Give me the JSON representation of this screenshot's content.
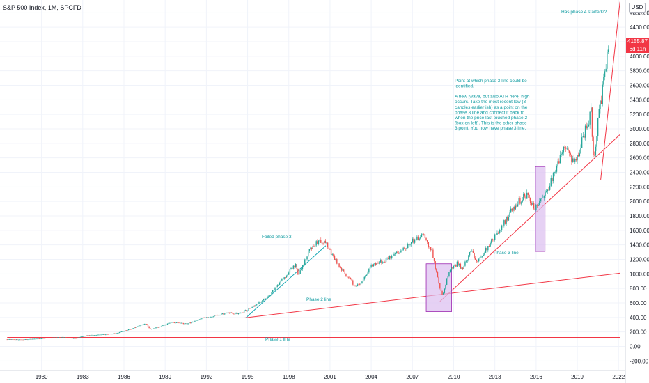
{
  "header": {
    "title": "S&P 500 Index, 1M, SPCFD",
    "currency": "USD"
  },
  "price_tag": {
    "value": "4155.87",
    "countdown": "6d 11h"
  },
  "chart_data": {
    "type": "candlestick",
    "y_ticks": [
      "-200.00",
      "0.00",
      "200.00",
      "400.00",
      "600.00",
      "800.00",
      "1000.00",
      "1200.00",
      "1400.00",
      "1600.00",
      "1800.00",
      "2000.00",
      "2200.00",
      "2400.00",
      "2600.00",
      "2800.00",
      "3000.00",
      "3200.00",
      "3400.00",
      "3600.00",
      "3800.00",
      "4000.00",
      "4200.00",
      "4400.00",
      "4600.00"
    ],
    "x_ticks": [
      "1980",
      "1983",
      "1986",
      "1989",
      "1992",
      "1995",
      "1998",
      "2001",
      "2004",
      "2007",
      "2010",
      "2013",
      "2016",
      "2019",
      "2022"
    ],
    "ylim": [
      -310,
      4750
    ],
    "xlim": [
      1977.5,
      2022.1
    ],
    "price_line": 4155.87,
    "series": [
      {
        "values": [
          [
            1977.5,
            98
          ],
          [
            1978.5,
            95
          ],
          [
            1979.5,
            104
          ],
          [
            1980.5,
            118
          ],
          [
            1981.5,
            128
          ],
          [
            1982.5,
            112
          ],
          [
            1983.2,
            150
          ],
          [
            1984.5,
            165
          ],
          [
            1985.5,
            185
          ],
          [
            1986.5,
            240
          ],
          [
            1987.6,
            320
          ],
          [
            1987.9,
            235
          ],
          [
            1988.5,
            265
          ],
          [
            1989.5,
            330
          ],
          [
            1990.6,
            310
          ],
          [
            1991.5,
            380
          ],
          [
            1992.5,
            420
          ],
          [
            1993.5,
            460
          ],
          [
            1994.5,
            455
          ],
          [
            1995.5,
            560
          ],
          [
            1996.5,
            690
          ],
          [
            1997.5,
            920
          ],
          [
            1998.5,
            1130
          ],
          [
            1998.7,
            990
          ],
          [
            1999.5,
            1330
          ],
          [
            2000.2,
            1470
          ],
          [
            2000.7,
            1420
          ],
          [
            2001.3,
            1220
          ],
          [
            2001.7,
            1080
          ],
          [
            2002.5,
            920
          ],
          [
            2002.8,
            820
          ],
          [
            2003.3,
            880
          ],
          [
            2004.0,
            1120
          ],
          [
            2005.0,
            1190
          ],
          [
            2006.0,
            1290
          ],
          [
            2007.0,
            1450
          ],
          [
            2007.8,
            1540
          ],
          [
            2008.4,
            1320
          ],
          [
            2008.9,
            880
          ],
          [
            2009.2,
            700
          ],
          [
            2009.7,
            1050
          ],
          [
            2010.3,
            1150
          ],
          [
            2010.6,
            1060
          ],
          [
            2011.3,
            1330
          ],
          [
            2011.7,
            1140
          ],
          [
            2012.5,
            1380
          ],
          [
            2013.5,
            1650
          ],
          [
            2014.5,
            1960
          ],
          [
            2015.3,
            2090
          ],
          [
            2015.8,
            1930
          ],
          [
            2016.1,
            1910
          ],
          [
            2016.8,
            2150
          ],
          [
            2017.5,
            2440
          ],
          [
            2018.0,
            2780
          ],
          [
            2018.9,
            2510
          ],
          [
            2019.5,
            2940
          ],
          [
            2020.0,
            3230
          ],
          [
            2020.2,
            2580
          ],
          [
            2020.5,
            3100
          ],
          [
            2020.9,
            3620
          ],
          [
            2021.3,
            4155
          ]
        ]
      }
    ]
  },
  "annotations": [
    {
      "text": "Has phase 4 started??"
    },
    {
      "text": "Point at which phase 3 line could be identified."
    },
    {
      "text": "A new [wave, but also ATH here] high occurs. Take the most recent low (3 candles earlier ish) as a point on the phase 3 line and connect it back to when the price last touched phase 2 (box on left). This is the other phase 3 point. You now have phase 3 line."
    },
    {
      "text": "Failed phase 3!"
    },
    {
      "text": "Phase 2 line"
    },
    {
      "text": "Phase 3 line"
    },
    {
      "text": "Phase 1 line"
    }
  ],
  "colors": {
    "up": "#26a69a",
    "down": "#ef5350",
    "trendline": "#f23645",
    "failed_line": "#18a7b5",
    "box_fill": "#dcbef0",
    "box_stroke": "#9c27b0",
    "annotation": "#0f9ba1"
  }
}
